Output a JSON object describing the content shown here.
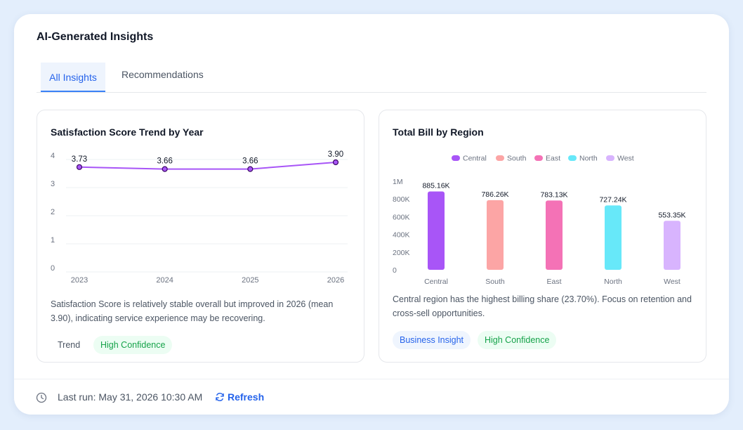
{
  "header": {
    "title": "AI-Generated Insights"
  },
  "tabs": [
    {
      "label": "All Insights",
      "active": true
    },
    {
      "label": "Recommendations",
      "active": false
    }
  ],
  "cards": [
    {
      "title": "Satisfaction Score Trend by Year",
      "insight": "Satisfaction Score is relatively stable overall but improved in 2026 (mean 3.90), indicating service experience may be recovering.",
      "tags": [
        {
          "label": "Trend",
          "style": "plain"
        },
        {
          "label": "High Confidence",
          "style": "green"
        }
      ]
    },
    {
      "title": "Total Bill by Region",
      "insight": "Central region has the highest billing share (23.70%). Focus on retention and cross-sell opportunities.",
      "tags": [
        {
          "label": "Business Insight",
          "style": "blue"
        },
        {
          "label": "High Confidence",
          "style": "green"
        }
      ]
    }
  ],
  "footer": {
    "last_run": "Last run: May 31, 2026 10:30 AM",
    "refresh_label": "Refresh",
    "clock_icon": "clock-icon",
    "refresh_icon": "refresh-icon"
  },
  "colors": {
    "accent": "#2563eb",
    "line": "#a855f7",
    "success": "#16a34a"
  },
  "chart_data": [
    {
      "type": "line",
      "title": "Satisfaction Score Trend by Year",
      "categories": [
        "2023",
        "2024",
        "2025",
        "2026"
      ],
      "series": [
        {
          "values": [
            3.73,
            3.66,
            3.66,
            3.9
          ],
          "labels": [
            "3.73",
            "3.66",
            "3.66",
            "3.90"
          ],
          "color": "#a855f7"
        }
      ],
      "y_ticks": [
        "0",
        "1",
        "2",
        "3",
        "4"
      ],
      "ylim": [
        0,
        4
      ],
      "grid": true
    },
    {
      "type": "bar",
      "title": "Total Bill by Region",
      "categories": [
        "Central",
        "South",
        "East",
        "North",
        "West"
      ],
      "values": [
        885160,
        786260,
        783130,
        727240,
        553350
      ],
      "labels": [
        "885.16K",
        "786.26K",
        "783.13K",
        "727.24K",
        "553.35K"
      ],
      "colors": [
        "#a855f7",
        "#fca5a5",
        "#f472b6",
        "#67e8f9",
        "#d8b4fe"
      ],
      "legend": [
        "Central",
        "South",
        "East",
        "North",
        "West"
      ],
      "legend_position": "top-center",
      "y_ticks": [
        "0",
        "200K",
        "400K",
        "600K",
        "800K",
        "1M"
      ],
      "ylim": [
        0,
        1000000
      ],
      "grid": false
    }
  ]
}
